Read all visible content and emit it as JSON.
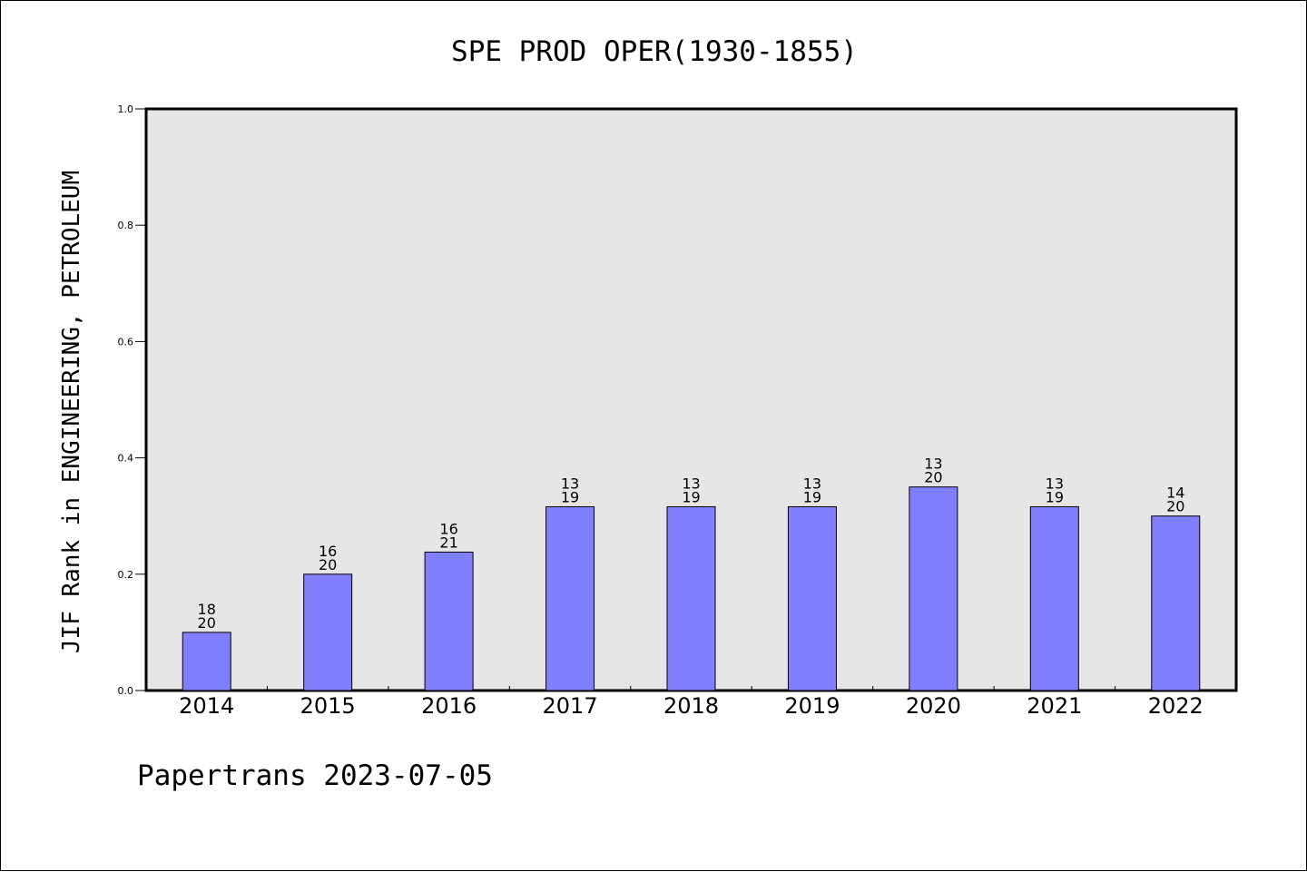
{
  "chart_data": {
    "type": "bar",
    "title": "SPE PROD OPER(1930-1855)",
    "xlabel": "",
    "ylabel": "JIF Rank in ENGINEERING, PETROLEUM",
    "ylim": [
      0,
      1.0
    ],
    "yticks": [
      "0.0",
      "0.2",
      "0.4",
      "0.6",
      "0.8",
      "1.0"
    ],
    "categories": [
      "2014",
      "2015",
      "2016",
      "2017",
      "2018",
      "2019",
      "2020",
      "2021",
      "2022"
    ],
    "values": [
      0.1,
      0.2,
      0.238,
      0.316,
      0.316,
      0.316,
      0.35,
      0.316,
      0.3
    ],
    "labels": [
      [
        "18",
        "20"
      ],
      [
        "16",
        "20"
      ],
      [
        "16",
        "21"
      ],
      [
        "13",
        "19"
      ],
      [
        "13",
        "19"
      ],
      [
        "13",
        "19"
      ],
      [
        "13",
        "20"
      ],
      [
        "13",
        "19"
      ],
      [
        "14",
        "20"
      ]
    ],
    "bar_color": "#8080ff",
    "plot_background": "#e6e6e6",
    "grid": false,
    "legend": "none"
  },
  "footer": "Papertrans 2023-07-05"
}
